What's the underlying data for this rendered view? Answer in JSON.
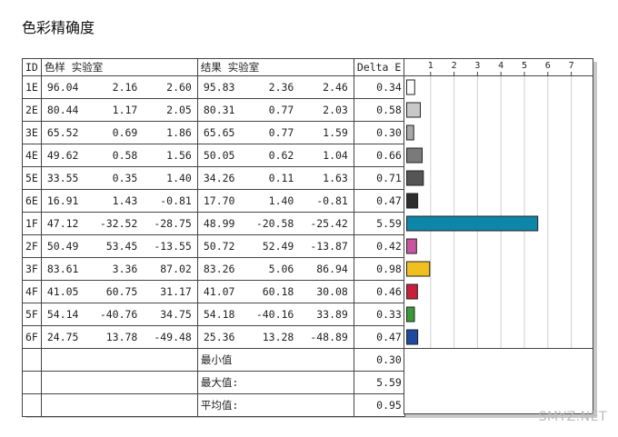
{
  "title": "色彩精确度",
  "headers": {
    "id": "ID",
    "color_lab": "色样 实验室",
    "result_lab": "结果 实验室",
    "delta": "Delta E"
  },
  "rows": [
    {
      "id": "1E",
      "color": [
        "96.04",
        "2.16",
        "2.60"
      ],
      "result": [
        "95.83",
        "2.36",
        "2.46"
      ],
      "delta": "0.34"
    },
    {
      "id": "2E",
      "color": [
        "80.44",
        "1.17",
        "2.05"
      ],
      "result": [
        "80.31",
        "0.77",
        "2.03"
      ],
      "delta": "0.58"
    },
    {
      "id": "3E",
      "color": [
        "65.52",
        "0.69",
        "1.86"
      ],
      "result": [
        "65.65",
        "0.77",
        "1.59"
      ],
      "delta": "0.30"
    },
    {
      "id": "4E",
      "color": [
        "49.62",
        "0.58",
        "1.56"
      ],
      "result": [
        "50.05",
        "0.62",
        "1.04"
      ],
      "delta": "0.66"
    },
    {
      "id": "5E",
      "color": [
        "33.55",
        "0.35",
        "1.40"
      ],
      "result": [
        "34.26",
        "0.11",
        "1.63"
      ],
      "delta": "0.71"
    },
    {
      "id": "6E",
      "color": [
        "16.91",
        "1.43",
        "-0.81"
      ],
      "result": [
        "17.70",
        "1.40",
        "-0.81"
      ],
      "delta": "0.47"
    },
    {
      "id": "1F",
      "color": [
        "47.12",
        "-32.52",
        "-28.75"
      ],
      "result": [
        "48.99",
        "-20.58",
        "-25.42"
      ],
      "delta": "5.59"
    },
    {
      "id": "2F",
      "color": [
        "50.49",
        "53.45",
        "-13.55"
      ],
      "result": [
        "50.72",
        "52.49",
        "-13.87"
      ],
      "delta": "0.42"
    },
    {
      "id": "3F",
      "color": [
        "83.61",
        "3.36",
        "87.02"
      ],
      "result": [
        "83.26",
        "5.06",
        "86.94"
      ],
      "delta": "0.98"
    },
    {
      "id": "4F",
      "color": [
        "41.05",
        "60.75",
        "31.17"
      ],
      "result": [
        "41.07",
        "60.18",
        "30.08"
      ],
      "delta": "0.46"
    },
    {
      "id": "5F",
      "color": [
        "54.14",
        "-40.76",
        "34.75"
      ],
      "result": [
        "54.18",
        "-40.16",
        "33.89"
      ],
      "delta": "0.33"
    },
    {
      "id": "6F",
      "color": [
        "24.75",
        "13.78",
        "-49.48"
      ],
      "result": [
        "25.36",
        "13.28",
        "-48.89"
      ],
      "delta": "0.47"
    }
  ],
  "summary": [
    {
      "label": "最小值",
      "value": "0.30"
    },
    {
      "label": "最大值:",
      "value": "5.59"
    },
    {
      "label": "平均值:",
      "value": "0.95"
    }
  ],
  "watermark": "SMYZ.NET",
  "chart_data": {
    "type": "bar",
    "orientation": "horizontal",
    "categories": [
      "1E",
      "2E",
      "3E",
      "4E",
      "5E",
      "6E",
      "1F",
      "2F",
      "3F",
      "4F",
      "5F",
      "6F"
    ],
    "values": [
      0.34,
      0.58,
      0.3,
      0.66,
      0.71,
      0.47,
      5.59,
      0.42,
      0.98,
      0.46,
      0.33,
      0.47
    ],
    "colors": [
      "#ffffff",
      "#c8c8c8",
      "#a8a8a8",
      "#7a7a7a",
      "#555555",
      "#2e2e2e",
      "#0e86a8",
      "#c8559e",
      "#f0c020",
      "#c8203c",
      "#3a9a3a",
      "#1e4aa0"
    ],
    "xticks": [
      "1",
      "2",
      "3",
      "4",
      "5",
      "6",
      "7"
    ],
    "xlim": [
      0,
      7
    ],
    "grid": true
  }
}
